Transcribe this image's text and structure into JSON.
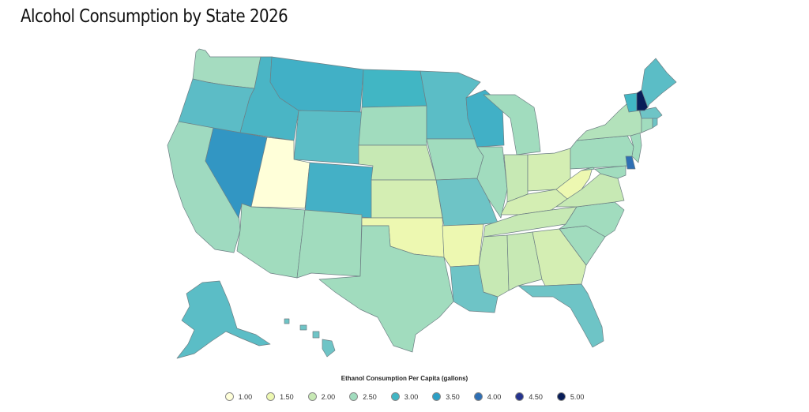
{
  "page": {
    "title": "Alcohol Consumption by State 2026"
  },
  "legend": {
    "title": "Ethanol Consumption Per Capita (gallons)",
    "items": [
      {
        "label": "1.00",
        "color": "#ffffd9"
      },
      {
        "label": "1.50",
        "color": "#edf8b1"
      },
      {
        "label": "2.00",
        "color": "#c7e9b4"
      },
      {
        "label": "2.50",
        "color": "#a1dcbe"
      },
      {
        "label": "3.00",
        "color": "#41b6c4"
      },
      {
        "label": "3.50",
        "color": "#2c9fc5"
      },
      {
        "label": "4.00",
        "color": "#2e6fb4"
      },
      {
        "label": "4.50",
        "color": "#25348e"
      },
      {
        "label": "5.00",
        "color": "#081d58"
      }
    ]
  },
  "regions": {
    "WA": "#a5dcc0",
    "OR": "#5cbcc6",
    "CA": "#9fdac0",
    "NV": "#3296c3",
    "ID": "#4ab5c5",
    "MT": "#41b0c6",
    "WY": "#5bbdc6",
    "UT": "#ffffd9",
    "AZ": "#a1dcbe",
    "CO": "#44b0c6",
    "NM": "#a1dcbe",
    "ND": "#41b6c4",
    "SD": "#a1dcbe",
    "NE": "#c7e9b4",
    "KS": "#d4eeb3",
    "OK": "#edf8b1",
    "TX": "#a1dcbe",
    "MN": "#5bbdc6",
    "IA": "#a1dcbe",
    "MO": "#6ec4c6",
    "AR": "#edf8b1",
    "LA": "#6ec4c6",
    "WI": "#41b0c6",
    "IL": "#a1dcbe",
    "MI": "#a1dcbe",
    "IN": "#c7e9b4",
    "OH": "#d4eeb3",
    "KY": "#d4eeb3",
    "TN": "#c7e9b4",
    "MS": "#c7e9b4",
    "AL": "#c7e9b4",
    "GA": "#d4eeb3",
    "FL": "#6ec4c6",
    "SC": "#a1dcbe",
    "NC": "#a1dcbe",
    "VA": "#c7e9b4",
    "WV": "#edf8b1",
    "PA": "#a1dcbe",
    "NY": "#b3e2bb",
    "ME": "#5bbdc6",
    "VT": "#41b6c4",
    "NH": "#081d58",
    "MA": "#6ec4c6",
    "CT": "#a1dcbe",
    "RI": "#6ec4c6",
    "NJ": "#a1dcbe",
    "DE": "#2e6fb4",
    "MD": "#a1dcbe",
    "AK": "#5bbdc6",
    "HI": "#6ec4c6"
  }
}
